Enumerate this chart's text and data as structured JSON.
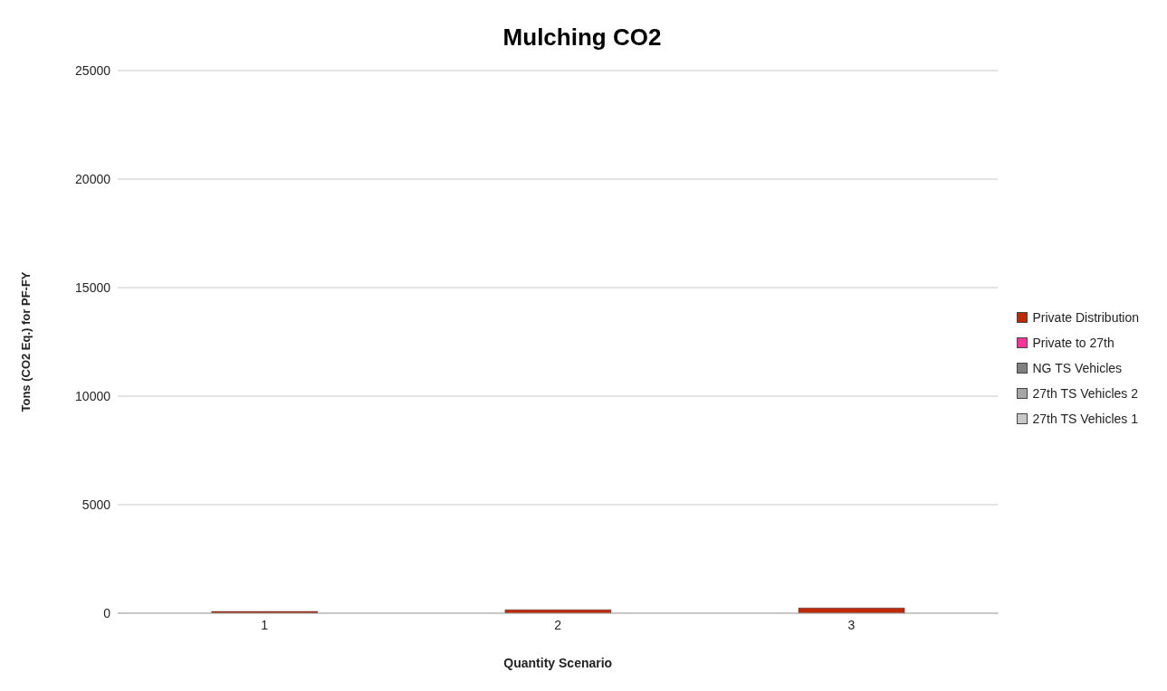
{
  "chart_data": {
    "type": "bar",
    "title": "Mulching CO2",
    "xlabel": "Quantity Scenario",
    "ylabel": "Tons (CO2 Eq.) for PF-FY",
    "categories": [
      "1",
      "2",
      "3"
    ],
    "stacked": true,
    "series": [
      {
        "name": "27th TS Vehicles 1",
        "color": "#c8c8c8",
        "values": [
          0,
          0,
          0
        ]
      },
      {
        "name": "27th TS Vehicles 2",
        "color": "#a6a6a6",
        "values": [
          0,
          0,
          0
        ]
      },
      {
        "name": "NG TS Vehicles",
        "color": "#808080",
        "values": [
          0,
          0,
          0
        ]
      },
      {
        "name": "Private to 27th",
        "color": "#ff3399",
        "values": [
          0,
          0,
          0
        ]
      },
      {
        "name": "Private Distribution",
        "color": "#c0280a",
        "values": [
          80,
          160,
          240
        ]
      }
    ],
    "ylim": [
      0,
      25000
    ],
    "yticks": [
      0,
      5000,
      10000,
      15000,
      20000,
      25000
    ],
    "grid": "y",
    "legend": "right"
  }
}
